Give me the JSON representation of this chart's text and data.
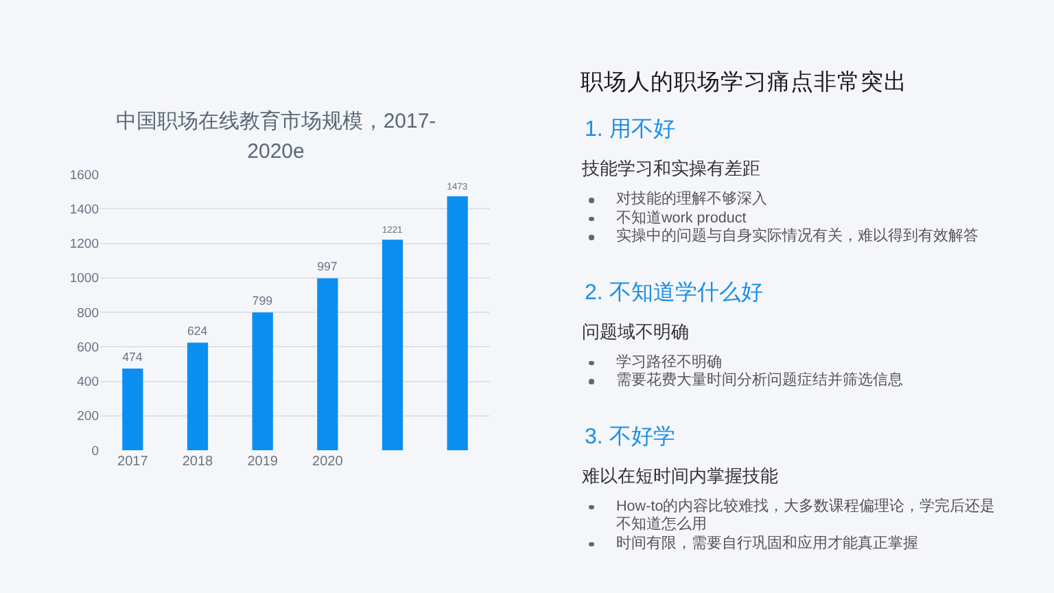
{
  "chart_data": [
    {
      "type": "bar",
      "title": "中国职场在线教育市场规模，2017-2020e",
      "categories": [
        "2017",
        "2018",
        "2019",
        "2020",
        null,
        null
      ],
      "values": [
        474,
        624,
        799,
        997,
        1221,
        1473
      ],
      "color": "#0a8ff0",
      "ylim": [
        0,
        1600
      ],
      "yticks": [
        0,
        200,
        400,
        600,
        800,
        1000,
        1200,
        1400,
        1600
      ],
      "grid": "y",
      "data_labels": true
    },
    {
      "type": "other",
      "title": "职场人的职场学习痛点非常突出"
    },
    {
      "type": "other",
      "title": "1. 用不好",
      "subtitle": "技能学习和实操有差距",
      "annotations": [
        "对技能的理解不够深入",
        "不知道work product",
        "实操中的问题与自身实际情况有关，难以得到有效解答"
      ]
    },
    {
      "type": "other",
      "title": "2. 不知道学什么好",
      "subtitle": "问题域不明确",
      "annotations": [
        "学习路径不明确",
        "需要花费大量时间分析问题症结并筛选信息"
      ]
    },
    {
      "type": "other",
      "title": "3. 不好学",
      "subtitle": "难以在短时间内掌握技能",
      "annotations": [
        "How-to的内容比较难找，大多数课程偏理论，学完后还是不知道怎么用",
        "时间有限，需要自行巩固和应用才能真正掌握"
      ]
    }
  ]
}
